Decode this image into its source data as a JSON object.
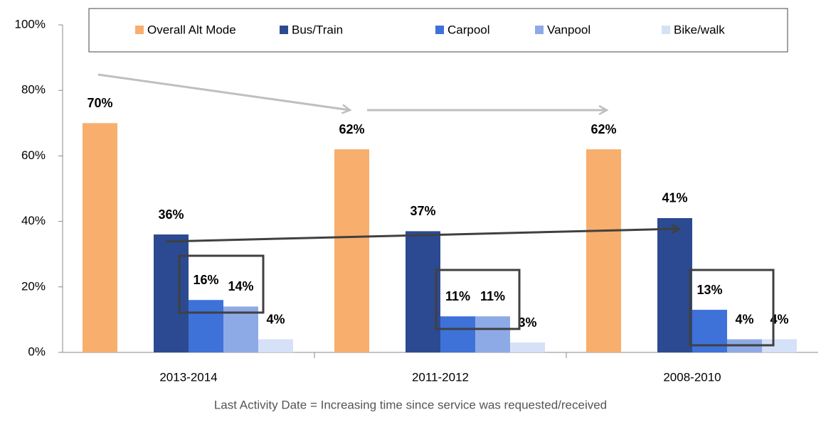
{
  "chart_data": {
    "type": "bar",
    "x_label": "Last Activity Date = Increasing time since service was requested/received",
    "categories": [
      "2013-2014",
      "2011-2012",
      "2008-2010"
    ],
    "series": [
      {
        "name": "Overall Alt Mode",
        "color": "#f8ae6c",
        "values": [
          70,
          62,
          62
        ],
        "value_labels": [
          "70%",
          "62%",
          "62%"
        ]
      },
      {
        "name": "Bus/Train",
        "color": "#2c4a91",
        "values": [
          36,
          37,
          41
        ],
        "value_labels": [
          "36%",
          "37%",
          "41%"
        ]
      },
      {
        "name": "Carpool",
        "color": "#3e72d9",
        "values": [
          16,
          11,
          13
        ],
        "value_labels": [
          "16%",
          "11%",
          "13%"
        ]
      },
      {
        "name": "Vanpool",
        "color": "#8eaae6",
        "values": [
          14,
          11,
          4
        ],
        "value_labels": [
          "14%",
          "11%",
          "4%"
        ]
      },
      {
        "name": "Bike/walk",
        "color": "#d5e1f7",
        "values": [
          4,
          3,
          4
        ],
        "value_labels": [
          "4%",
          "3%",
          "4%"
        ]
      }
    ],
    "ylim": [
      0,
      100
    ],
    "yticks": [
      {
        "value": 0,
        "label": "0%"
      },
      {
        "value": 20,
        "label": "20%"
      },
      {
        "value": 40,
        "label": "40%"
      },
      {
        "value": 60,
        "label": "60%"
      },
      {
        "value": 80,
        "label": "80%"
      },
      {
        "value": 100,
        "label": "100%"
      }
    ],
    "legend": "top"
  }
}
